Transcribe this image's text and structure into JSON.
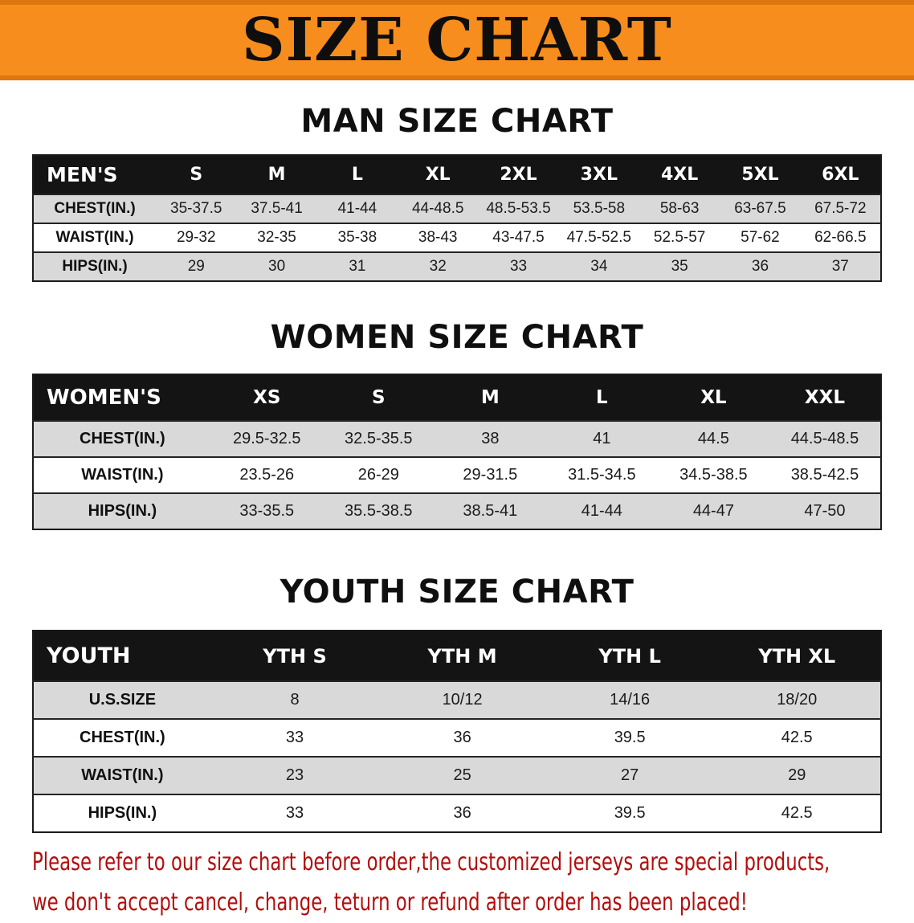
{
  "banner": {
    "title": "SIZE CHART"
  },
  "sections": [
    {
      "id": "men",
      "heading": "MAN SIZE CHART",
      "table": {
        "header": [
          "MEN'S",
          "S",
          "M",
          "L",
          "XL",
          "2XL",
          "3XL",
          "4XL",
          "5XL",
          "6XL"
        ],
        "rows": [
          {
            "label": "CHEST(IN.)",
            "values": [
              "35-37.5",
              "37.5-41",
              "41-44",
              "44-48.5",
              "48.5-53.5",
              "53.5-58",
              "58-63",
              "63-67.5",
              "67.5-72"
            ]
          },
          {
            "label": "WAIST(IN.)",
            "values": [
              "29-32",
              "32-35",
              "35-38",
              "38-43",
              "43-47.5",
              "47.5-52.5",
              "52.5-57",
              "57-62",
              "62-66.5"
            ]
          },
          {
            "label": "HIPS(IN.)",
            "values": [
              "29",
              "30",
              "31",
              "32",
              "33",
              "34",
              "35",
              "36",
              "37"
            ]
          }
        ]
      }
    },
    {
      "id": "women",
      "heading": "WOMEN SIZE CHART",
      "table": {
        "header": [
          "WOMEN'S",
          "XS",
          "S",
          "M",
          "L",
          "XL",
          "XXL"
        ],
        "rows": [
          {
            "label": "CHEST(IN.)",
            "values": [
              "29.5-32.5",
              "32.5-35.5",
              "38",
              "41",
              "44.5",
              "44.5-48.5"
            ]
          },
          {
            "label": "WAIST(IN.)",
            "values": [
              "23.5-26",
              "26-29",
              "29-31.5",
              "31.5-34.5",
              "34.5-38.5",
              "38.5-42.5"
            ]
          },
          {
            "label": "HIPS(IN.)",
            "values": [
              "33-35.5",
              "35.5-38.5",
              "38.5-41",
              "41-44",
              "44-47",
              "47-50"
            ]
          }
        ]
      }
    },
    {
      "id": "youth",
      "heading": "YOUTH SIZE CHART",
      "table": {
        "header": [
          "YOUTH",
          "YTH S",
          "YTH M",
          "YTH L",
          "YTH XL"
        ],
        "rows": [
          {
            "label": "U.S.SIZE",
            "values": [
              "8",
              "10/12",
              "14/16",
              "18/20"
            ]
          },
          {
            "label": "CHEST(IN.)",
            "values": [
              "33",
              "36",
              "39.5",
              "42.5"
            ]
          },
          {
            "label": "WAIST(IN.)",
            "values": [
              "23",
              "25",
              "27",
              "29"
            ]
          },
          {
            "label": "HIPS(IN.)",
            "values": [
              "33",
              "36",
              "39.5",
              "42.5"
            ]
          }
        ]
      }
    }
  ],
  "disclaimer": {
    "line1": "Please refer to our size chart before order,the customized jerseys are special products,",
    "line2": "we don't accept cancel, change, teturn or refund after order has been placed!"
  },
  "colors": {
    "banner_bg": "#f78d1d",
    "banner_border": "#dd760f",
    "table_header_bg": "#141414",
    "row_shade": "#d9d9d9",
    "disclaimer_text": "#b30d0d"
  }
}
